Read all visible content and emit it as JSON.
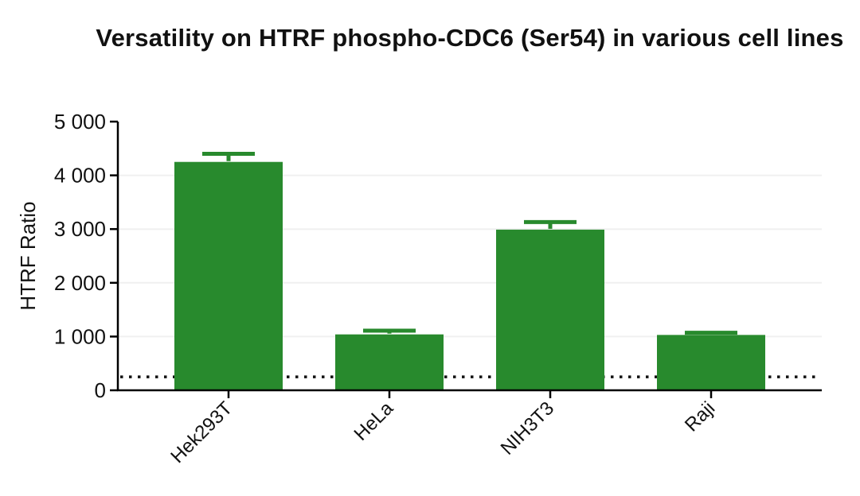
{
  "page": {
    "background": "#ffffff"
  },
  "chart_data": {
    "type": "bar",
    "title": "Versatility on HTRF phospho-CDC6 (Ser54) in various cell lines",
    "xlabel": "",
    "ylabel": "HTRF Ratio",
    "categories": [
      "Hek293T",
      "HeLa",
      "NIH3T3",
      "Raji"
    ],
    "values": [
      4250,
      1040,
      2990,
      1030
    ],
    "errors_plus": [
      150,
      70,
      140,
      40
    ],
    "ylim": [
      0,
      5000
    ],
    "ytick_interval": 1000,
    "ytick_values": [
      0,
      1000,
      2000,
      3000,
      4000,
      5000
    ],
    "ytick_labels": [
      "0",
      "1 000",
      "2 000",
      "3 000",
      "4 000",
      "5 000"
    ],
    "threshold_line": {
      "value": 250,
      "style": "dotted",
      "color": "#111111"
    },
    "grid": "horizontal-light",
    "legend": "none",
    "x_label_rotation_deg": 45
  },
  "colors": {
    "bar": "#288A2D",
    "axis": "#000000",
    "grid": "#F0F0F0",
    "text": "#111111",
    "background": "#ffffff"
  }
}
